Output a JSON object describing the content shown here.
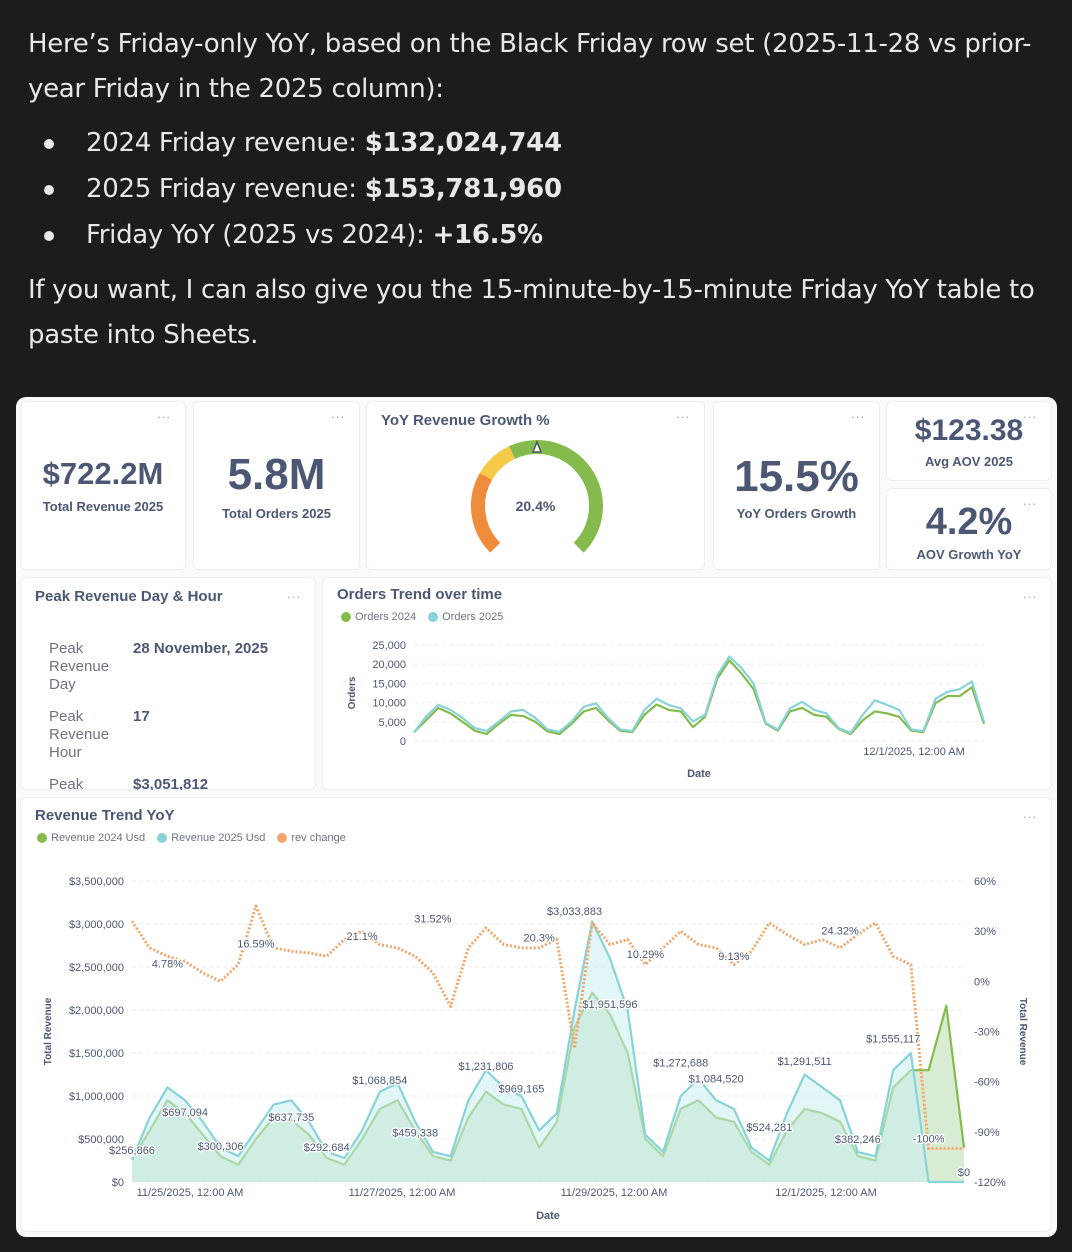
{
  "chat": {
    "intro": "Here’s Friday-only YoY, based on the Black Friday row set (2025-11-28 vs prior-year Friday in the 2025 column):",
    "bullets": [
      {
        "label": "2024 Friday revenue: ",
        "value": "$132,024,744"
      },
      {
        "label": "2025 Friday revenue: ",
        "value": "$153,781,960"
      },
      {
        "label": "Friday YoY (2025 vs 2024): ",
        "value": "+16.5%"
      }
    ],
    "outro": "If you want, I can also give you the 15-minute-by-15-minute Friday YoY table to paste into Sheets."
  },
  "menu_icon": "...",
  "kpis": {
    "total_revenue": {
      "value": "$722.2M",
      "label": "Total Revenue 2025"
    },
    "total_orders": {
      "value": "5.8M",
      "label": "Total Orders 2025"
    },
    "yoy_revenue": {
      "title": "YoY Revenue Growth %",
      "value": "20.4%",
      "value_num": 20.4,
      "colors": [
        "#ef8c3b",
        "#f7c948",
        "#84bb4c"
      ]
    },
    "yoy_orders": {
      "value": "15.5%",
      "label": "YoY Orders Growth"
    },
    "avg_aov": {
      "value": "$123.38",
      "label": "Avg AOV 2025"
    },
    "aov_growth": {
      "value": "4.2%",
      "label": "AOV Growth YoY"
    }
  },
  "peak": {
    "title": "Peak Revenue Day & Hour",
    "rows": [
      {
        "key": "Peak Revenue Day",
        "value": "28 November, 2025"
      },
      {
        "key": "Peak Revenue Hour",
        "value": "17"
      },
      {
        "key": "Peak",
        "value": "$3,051,812"
      }
    ]
  },
  "chart_data": [
    {
      "type": "line",
      "title": "Orders Trend over time",
      "xlabel": "Date",
      "ylabel": "Orders",
      "ylim": [
        0,
        25000
      ],
      "yticks": [
        "25,000",
        "20,000",
        "15,000",
        "10,000",
        "5,000",
        "0"
      ],
      "xticks": [
        "12/1/2025, 12:00 AM"
      ],
      "grid": true,
      "legend": "top-left",
      "x": [
        "2025-11-24 12:00",
        "2025-11-24 16:00",
        "2025-11-24 20:00",
        "2025-11-25 00:00",
        "2025-11-25 04:00",
        "2025-11-25 08:00",
        "2025-11-25 12:00",
        "2025-11-25 16:00",
        "2025-11-25 20:00",
        "2025-11-26 00:00",
        "2025-11-26 04:00",
        "2025-11-26 08:00",
        "2025-11-26 12:00",
        "2025-11-26 16:00",
        "2025-11-26 20:00",
        "2025-11-27 00:00",
        "2025-11-27 04:00",
        "2025-11-27 08:00",
        "2025-11-27 12:00",
        "2025-11-27 16:00",
        "2025-11-27 20:00",
        "2025-11-28 00:00",
        "2025-11-28 04:00",
        "2025-11-28 08:00",
        "2025-11-28 12:00",
        "2025-11-28 16:00",
        "2025-11-28 20:00",
        "2025-11-29 00:00",
        "2025-11-29 04:00",
        "2025-11-29 08:00",
        "2025-11-29 12:00",
        "2025-11-29 16:00",
        "2025-11-29 20:00",
        "2025-11-30 00:00",
        "2025-11-30 04:00",
        "2025-11-30 08:00",
        "2025-11-30 12:00",
        "2025-11-30 16:00",
        "2025-11-30 20:00",
        "2025-12-01 00:00",
        "2025-12-01 04:00",
        "2025-12-01 08:00",
        "2025-12-01 12:00",
        "2025-12-01 16:00",
        "2025-12-01 20:00",
        "2025-12-02 00:00",
        "2025-12-02 04:00",
        "2025-12-02 08:00"
      ],
      "series": [
        {
          "name": "Orders 2024",
          "color": "#84bb4c",
          "values": [
            2300,
            5400,
            8600,
            7200,
            5000,
            2700,
            1800,
            4500,
            6800,
            6500,
            5000,
            2500,
            1800,
            4500,
            7700,
            8600,
            5400,
            2700,
            2300,
            6800,
            9500,
            8100,
            7700,
            3600,
            6300,
            16200,
            21000,
            17600,
            13500,
            4500,
            2700,
            7700,
            8600,
            6800,
            6300,
            3200,
            1800,
            5400,
            7700,
            7200,
            6300,
            2700,
            2300,
            9900,
            11700,
            11700,
            14000,
            4500
          ]
        },
        {
          "name": "Orders 2025",
          "color": "#88d3d8",
          "values": [
            2200,
            6400,
            9400,
            8100,
            6000,
            3400,
            2600,
            5100,
            7700,
            8100,
            6000,
            3000,
            2400,
            5100,
            8900,
            9800,
            6000,
            3000,
            2600,
            8100,
            11000,
            9400,
            8500,
            5100,
            6800,
            17000,
            22000,
            19000,
            15000,
            4700,
            3000,
            8500,
            10200,
            8100,
            7200,
            3400,
            2100,
            6800,
            10600,
            9400,
            8100,
            3000,
            2600,
            11000,
            12800,
            13500,
            15500,
            5000
          ]
        }
      ]
    },
    {
      "type": "line",
      "title": "Revenue Trend YoY",
      "xlabel": "Date",
      "ylabel": "Total Revenue",
      "ylabel_right": "Total Revenue",
      "ylim": [
        0,
        3500000
      ],
      "ylim_right": [
        -120,
        60
      ],
      "yticks": [
        "$3,500,000",
        "$3,000,000",
        "$2,500,000",
        "$2,000,000",
        "$1,500,000",
        "$1,000,000",
        "$500,000",
        "$0"
      ],
      "yticks_right": [
        "60%",
        "30%",
        "0%",
        "-30%",
        "-60%",
        "-90%",
        "-120%"
      ],
      "xticks": [
        "11/25/2025, 12:00 AM",
        "11/27/2025, 12:00 AM",
        "11/29/2025, 12:00 AM",
        "12/1/2025, 12:00 AM"
      ],
      "grid": true,
      "legend": "top-left",
      "series": [
        {
          "name": "Revenue 2024 Usd",
          "color": "#84bb4c",
          "values": [
            260000,
            600000,
            950000,
            800000,
            550000,
            300000,
            200000,
            500000,
            750000,
            720000,
            550000,
            280000,
            200000,
            500000,
            850000,
            950000,
            600000,
            300000,
            250000,
            750000,
            1050000,
            900000,
            850000,
            400000,
            700000,
            1800000,
            2200000,
            1950000,
            1500000,
            500000,
            300000,
            850000,
            950000,
            750000,
            700000,
            350000,
            200000,
            600000,
            850000,
            800000,
            700000,
            300000,
            250000,
            1100000,
            1300000,
            1300000,
            2050000,
            400000
          ]
        },
        {
          "name": "Revenue 2025 Usd",
          "color": "#88d3d8",
          "values": [
            260000,
            750000,
            1100000,
            950000,
            700000,
            400000,
            300000,
            600000,
            900000,
            950000,
            700000,
            350000,
            280000,
            600000,
            1050000,
            1150000,
            700000,
            350000,
            300000,
            950000,
            1300000,
            1100000,
            1000000,
            600000,
            800000,
            2000000,
            3030000,
            2600000,
            2000000,
            550000,
            350000,
            1000000,
            1200000,
            950000,
            850000,
            400000,
            250000,
            800000,
            1250000,
            1100000,
            950000,
            350000,
            300000,
            1300000,
            1500000,
            0,
            0,
            0
          ]
        },
        {
          "name": "rev change",
          "color": "#f2a66b",
          "axis": "right",
          "values": [
            36,
            20,
            15,
            12,
            5,
            0,
            10,
            45,
            20,
            18,
            17,
            15,
            25,
            30,
            22,
            20,
            15,
            5,
            -15,
            20,
            32,
            22,
            20,
            20,
            25,
            -40,
            35,
            22,
            25,
            10,
            20,
            30,
            22,
            20,
            10,
            18,
            35,
            28,
            22,
            25,
            20,
            28,
            35,
            15,
            10,
            -100,
            -100,
            -100
          ]
        }
      ],
      "annotations": [
        {
          "text": "$256,866",
          "x": "2025-11-24 12:00",
          "y": 256866,
          "axis": "left"
        },
        {
          "text": "$697,094",
          "x": "2025-11-25 00:00",
          "y": 697094,
          "axis": "left"
        },
        {
          "text": "$300,306",
          "x": "2025-11-25 08:00",
          "y": 300306,
          "axis": "left"
        },
        {
          "text": "$637,735",
          "x": "2025-11-26 00:00",
          "y": 637735,
          "axis": "left"
        },
        {
          "text": "$292,684",
          "x": "2025-11-26 08:00",
          "y": 292684,
          "axis": "left"
        },
        {
          "text": "$1,068,854",
          "x": "2025-11-26 20:00",
          "y": 1068854,
          "axis": "left"
        },
        {
          "text": "$459,338",
          "x": "2025-11-27 04:00",
          "y": 459338,
          "axis": "left"
        },
        {
          "text": "$1,231,806",
          "x": "2025-11-27 20:00",
          "y": 1231806,
          "axis": "left"
        },
        {
          "text": "$969,165",
          "x": "2025-11-28 04:00",
          "y": 969165,
          "axis": "left"
        },
        {
          "text": "$3,033,883",
          "x": "2025-11-28 16:00",
          "y": 3033883,
          "axis": "left"
        },
        {
          "text": "$1,951,596",
          "x": "2025-11-29 00:00",
          "y": 1951596,
          "axis": "left"
        },
        {
          "text": "$1,272,688",
          "x": "2025-11-29 16:00",
          "y": 1272688,
          "axis": "left"
        },
        {
          "text": "$1,084,520",
          "x": "2025-11-30 00:00",
          "y": 1084520,
          "axis": "left"
        },
        {
          "text": "$524,281",
          "x": "2025-11-30 12:00",
          "y": 524281,
          "axis": "left"
        },
        {
          "text": "$1,291,511",
          "x": "2025-11-30 20:00",
          "y": 1291511,
          "axis": "left"
        },
        {
          "text": "$382,246",
          "x": "2025-12-01 08:00",
          "y": 382246,
          "axis": "left"
        },
        {
          "text": "$1,555,117",
          "x": "2025-12-01 16:00",
          "y": 1555117,
          "axis": "left"
        },
        {
          "text": "$0",
          "x": "2025-12-02 08:00",
          "y": 0,
          "axis": "left"
        },
        {
          "text": "4.78%",
          "x": "2025-11-24 20:00",
          "y": 4.78,
          "axis": "right"
        },
        {
          "text": "16.59%",
          "x": "2025-11-25 16:00",
          "y": 16.59,
          "axis": "right"
        },
        {
          "text": "21.1%",
          "x": "2025-11-26 16:00",
          "y": 21.1,
          "axis": "right"
        },
        {
          "text": "31.52%",
          "x": "2025-11-27 08:00",
          "y": 31.52,
          "axis": "right"
        },
        {
          "text": "20.3%",
          "x": "2025-11-28 08:00",
          "y": 20.3,
          "axis": "right"
        },
        {
          "text": "10.29%",
          "x": "2025-11-29 08:00",
          "y": 10.29,
          "axis": "right"
        },
        {
          "text": "9.13%",
          "x": "2025-11-30 04:00",
          "y": 9.13,
          "axis": "right"
        },
        {
          "text": "24.32%",
          "x": "2025-12-01 04:00",
          "y": 24.32,
          "axis": "right"
        },
        {
          "text": "-100%",
          "x": "2025-12-02 00:00",
          "y": -100,
          "axis": "right"
        }
      ]
    }
  ]
}
